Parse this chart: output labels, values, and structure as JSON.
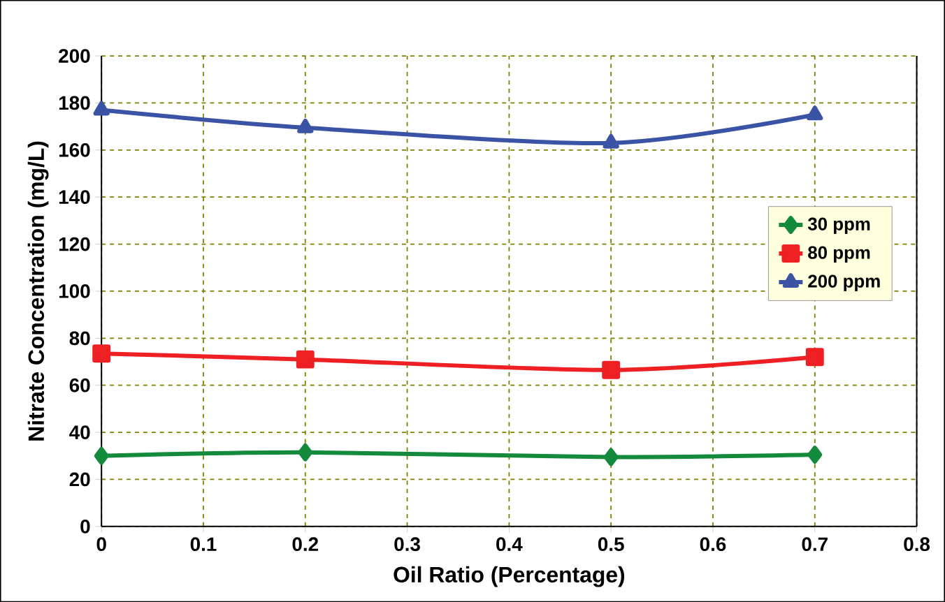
{
  "chart_data": {
    "type": "line",
    "xlabel": "Oil Ratio (Percentage)",
    "ylabel": "Nitrate Concentration (mg/L)",
    "x": [
      0,
      0.2,
      0.5,
      0.7
    ],
    "series": [
      {
        "name": "30 ppm",
        "color": "#138a3c",
        "marker": "diamond",
        "values": [
          30,
          31.5,
          29.5,
          30.5
        ]
      },
      {
        "name": "80 ppm",
        "color": "#ee2024",
        "marker": "square",
        "values": [
          73.5,
          71,
          66.5,
          72
        ]
      },
      {
        "name": "200 ppm",
        "color": "#3a53a4",
        "marker": "triangle",
        "values": [
          177,
          169.5,
          163,
          175
        ]
      }
    ],
    "xlim": [
      0,
      0.8
    ],
    "xticks": [
      0,
      0.1,
      0.2,
      0.3,
      0.4,
      0.5,
      0.6,
      0.7,
      0.8
    ],
    "ylim": [
      0,
      200
    ],
    "yticks": [
      0,
      20,
      40,
      60,
      80,
      100,
      120,
      140,
      160,
      180,
      200
    ],
    "grid": true,
    "legend": "right",
    "line_style": "solid"
  }
}
